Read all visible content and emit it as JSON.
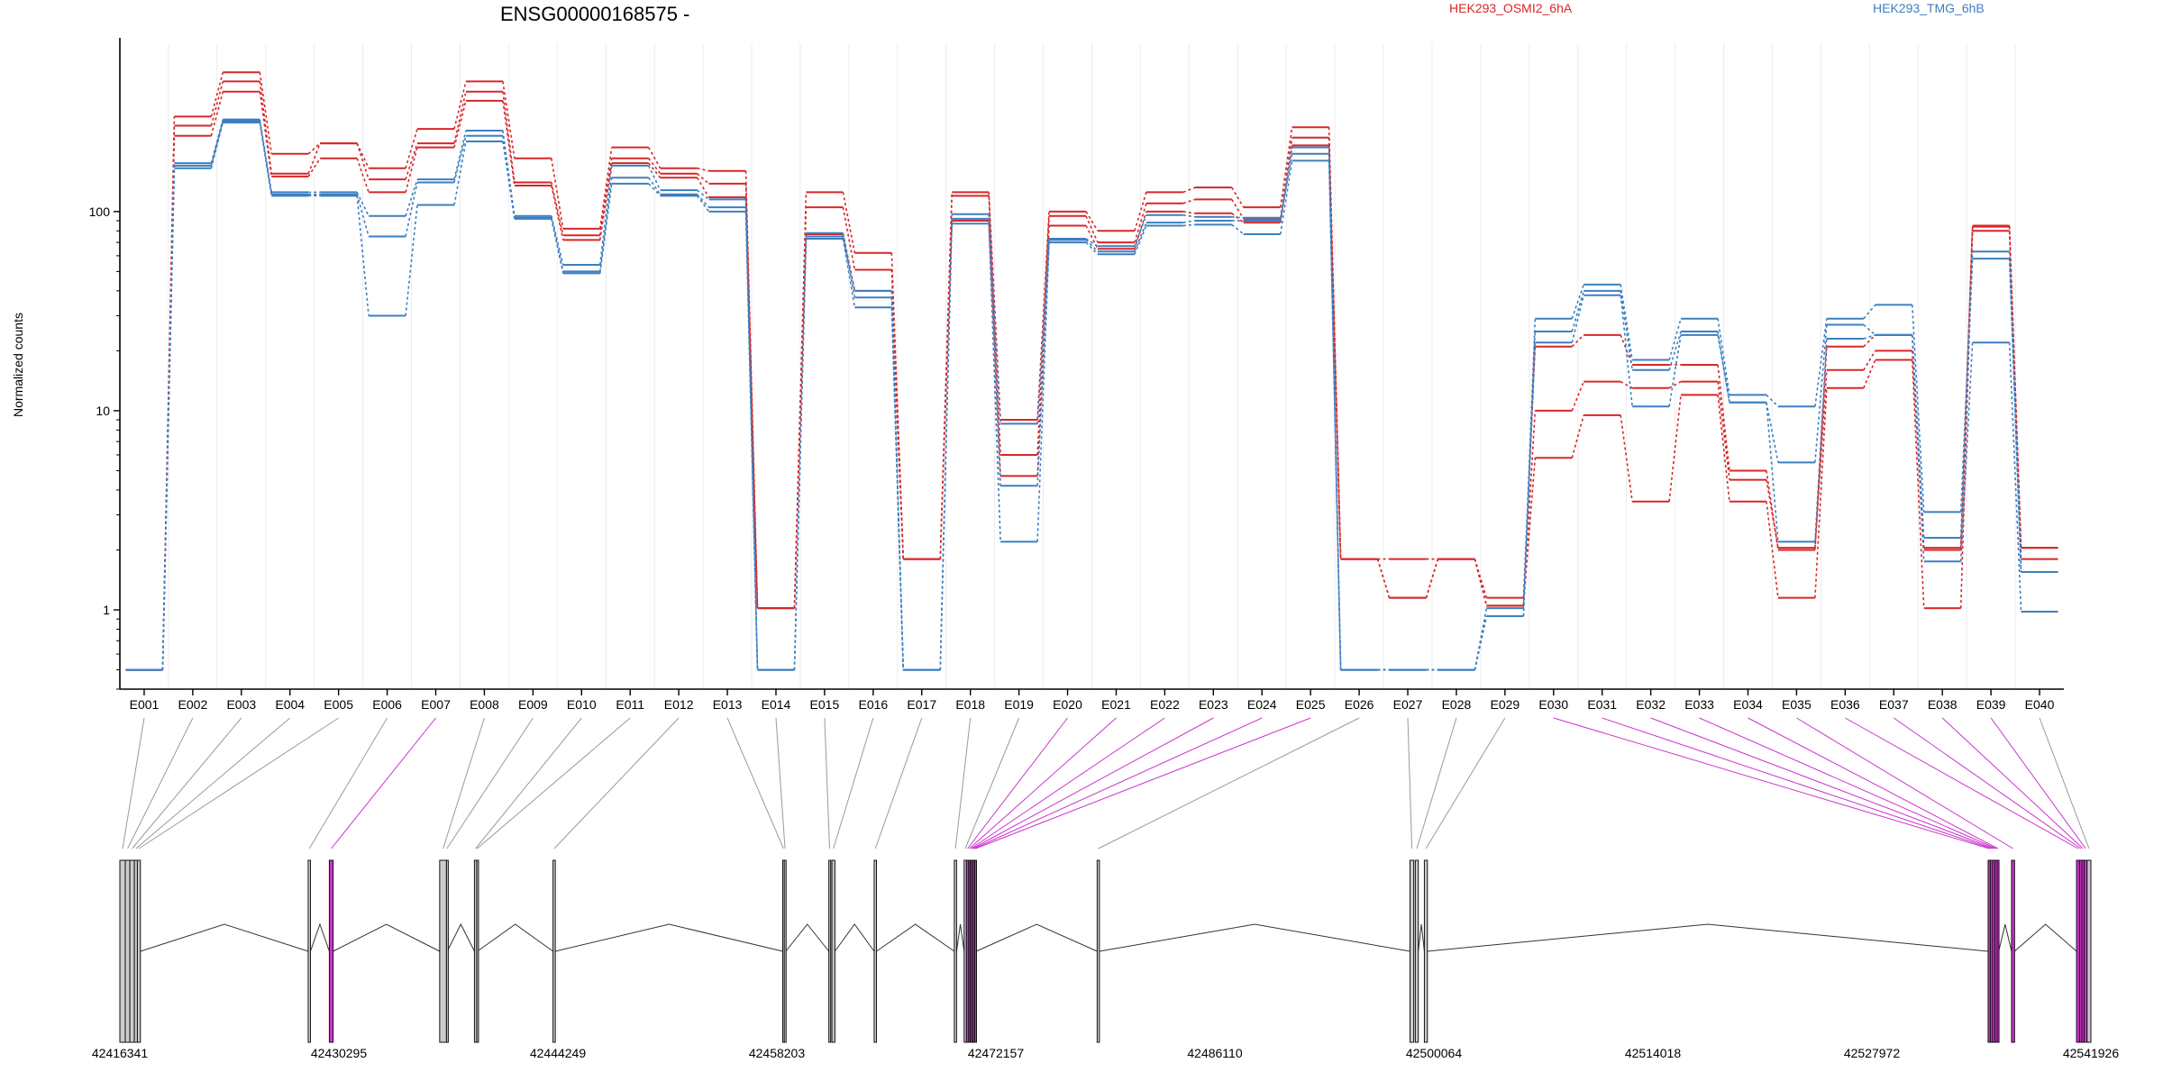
{
  "chart_data": {
    "type": "line",
    "title": "ENSG00000168575 -",
    "ylabel": "Normalized counts",
    "xlabel": "",
    "yscale": "log",
    "ylim": [
      0.4,
      700
    ],
    "yticks": [
      1,
      10,
      100
    ],
    "grid": "vertical",
    "legend": {
      "placement": "top",
      "entries": [
        "HEK293_OSMI2_6hA",
        "HEK293_TMG_6hB"
      ]
    },
    "colors": {
      "HEK293_OSMI2_6hA": "#d62728",
      "HEK293_TMG_6hB": "#3d7fbf",
      "highlight": "#cc33cc",
      "exon": "#cccccc"
    },
    "categories": [
      "E001",
      "E002",
      "E003",
      "E004",
      "E005",
      "E006",
      "E007",
      "E008",
      "E009",
      "E010",
      "E011",
      "E012",
      "E013",
      "E014",
      "E015",
      "E016",
      "E017",
      "E018",
      "E019",
      "E020",
      "E021",
      "E022",
      "E023",
      "E024",
      "E025",
      "E026",
      "E027",
      "E028",
      "E029",
      "E030",
      "E031",
      "E032",
      "E033",
      "E034",
      "E035",
      "E036",
      "E037",
      "E038",
      "E039",
      "E040"
    ],
    "series": [
      {
        "group": "HEK293_OSMI2_6hA",
        "values": [
          0.5,
          300,
          500,
          195,
          220,
          165,
          260,
          450,
          185,
          82,
          210,
          165,
          160,
          1.02,
          125,
          62,
          1.8,
          125,
          9,
          100,
          80,
          125,
          132,
          105,
          265,
          1.8,
          1.8,
          1.8,
          1.15,
          21,
          24,
          17,
          17,
          5,
          2,
          21,
          24,
          2.05,
          85,
          2.05
        ]
      },
      {
        "group": "HEK293_OSMI2_6hA",
        "values": [
          0.5,
          270,
          450,
          155,
          220,
          145,
          220,
          400,
          140,
          76,
          185,
          155,
          138,
          1.02,
          105,
          51,
          1.8,
          120,
          6,
          95,
          70,
          110,
          115,
          92,
          235,
          1.8,
          1.15,
          1.8,
          1.05,
          10,
          14,
          13,
          14,
          4.5,
          2.05,
          16,
          20,
          2,
          84,
          2.05
        ]
      },
      {
        "group": "HEK293_OSMI2_6hA",
        "values": [
          0.5,
          240,
          400,
          150,
          185,
          125,
          210,
          360,
          135,
          72,
          175,
          148,
          118,
          1.02,
          77,
          40,
          1.8,
          90,
          4.7,
          85,
          65,
          100,
          98,
          88,
          215,
          1.8,
          1.15,
          1.8,
          1.05,
          5.8,
          9.5,
          3.5,
          12,
          3.5,
          1.15,
          13,
          18,
          1.02,
          80,
          1.8
        ]
      },
      {
        "group": "HEK293_TMG_6hB",
        "values": [
          0.5,
          175,
          290,
          125,
          125,
          95,
          145,
          255,
          95,
          54,
          170,
          128,
          115,
          0.5,
          78,
          40,
          0.5,
          97,
          8.6,
          73,
          67,
          96,
          94,
          93,
          210,
          0.5,
          0.5,
          0.5,
          1.02,
          29,
          43,
          18,
          29,
          12,
          10.5,
          29,
          34,
          3.1,
          63,
          1.55
        ]
      },
      {
        "group": "HEK293_TMG_6hB",
        "values": [
          0.5,
          170,
          285,
          122,
          122,
          75,
          140,
          240,
          93,
          50,
          148,
          122,
          105,
          0.5,
          75,
          37,
          0.5,
          92,
          4.2,
          72,
          63,
          88,
          90,
          90,
          195,
          0.5,
          0.5,
          0.5,
          0.93,
          25,
          40,
          16,
          25,
          11,
          5.5,
          27,
          24,
          2.3,
          58,
          1.55
        ]
      },
      {
        "group": "HEK293_TMG_6hB",
        "values": [
          0.5,
          165,
          280,
          120,
          120,
          30,
          108,
          225,
          92,
          49,
          138,
          120,
          100,
          0.5,
          73,
          33,
          0.5,
          87,
          2.2,
          70,
          61,
          85,
          86,
          77,
          180,
          0.5,
          0.5,
          0.5,
          0.93,
          22,
          38,
          10.5,
          24,
          11,
          2.2,
          23,
          24,
          1.75,
          22,
          0.98
        ]
      }
    ],
    "exon_model": {
      "coordinate_labels": [
        "42416341",
        "42430295",
        "42444249",
        "42458203",
        "42472157",
        "42486110",
        "42500064",
        "42514018",
        "42527972",
        "42541926"
      ],
      "exons": [
        {
          "bin": "E001",
          "start": 42416341,
          "end": 42416700,
          "highlight": false
        },
        {
          "bin": "E002",
          "start": 42416700,
          "end": 42417000,
          "highlight": false
        },
        {
          "bin": "E003",
          "start": 42417000,
          "end": 42417300,
          "highlight": false
        },
        {
          "bin": "E004",
          "start": 42417300,
          "end": 42417500,
          "highlight": false
        },
        {
          "bin": "E005",
          "start": 42417500,
          "end": 42417700,
          "highlight": false
        },
        {
          "bin": "E006",
          "start": 42428800,
          "end": 42428950,
          "highlight": false
        },
        {
          "bin": "E007",
          "start": 42430200,
          "end": 42430450,
          "highlight": true
        },
        {
          "bin": "E008",
          "start": 42437500,
          "end": 42437950,
          "highlight": false
        },
        {
          "bin": "E009",
          "start": 42437950,
          "end": 42438000,
          "highlight": false
        },
        {
          "bin": "E010",
          "start": 42439800,
          "end": 42439950,
          "highlight": false
        },
        {
          "bin": "E011",
          "start": 42439950,
          "end": 42440000,
          "highlight": false
        },
        {
          "bin": "E012",
          "start": 42445000,
          "end": 42445150,
          "highlight": false
        },
        {
          "bin": "E013",
          "start": 42460200,
          "end": 42460300,
          "highlight": false
        },
        {
          "bin": "E014",
          "start": 42460300,
          "end": 42460400,
          "highlight": false
        },
        {
          "bin": "E015",
          "start": 42463250,
          "end": 42463350,
          "highlight": false
        },
        {
          "bin": "E016",
          "start": 42463450,
          "end": 42463650,
          "highlight": false
        },
        {
          "bin": "E017",
          "start": 42466250,
          "end": 42466400,
          "highlight": false
        },
        {
          "bin": "E018",
          "start": 42471550,
          "end": 42471700,
          "highlight": false
        },
        {
          "bin": "E019",
          "start": 42472200,
          "end": 42472350,
          "highlight": false
        },
        {
          "bin": "E020",
          "start": 42472350,
          "end": 42472500,
          "highlight": true
        },
        {
          "bin": "E021",
          "start": 42472500,
          "end": 42472600,
          "highlight": true
        },
        {
          "bin": "E022",
          "start": 42472600,
          "end": 42472700,
          "highlight": true
        },
        {
          "bin": "E023",
          "start": 42472700,
          "end": 42472800,
          "highlight": true
        },
        {
          "bin": "E024",
          "start": 42472800,
          "end": 42472900,
          "highlight": true
        },
        {
          "bin": "E025",
          "start": 42472900,
          "end": 42473000,
          "highlight": true
        },
        {
          "bin": "E026",
          "start": 42481000,
          "end": 42481150,
          "highlight": false
        },
        {
          "bin": "E027",
          "start": 42501700,
          "end": 42501950,
          "highlight": false
        },
        {
          "bin": "E028",
          "start": 42502050,
          "end": 42502250,
          "highlight": false
        },
        {
          "bin": "E029",
          "start": 42502650,
          "end": 42502850,
          "highlight": false
        },
        {
          "bin": "E030",
          "start": 42539950,
          "end": 42540100,
          "highlight": true
        },
        {
          "bin": "E031",
          "start": 42540100,
          "end": 42540250,
          "highlight": true
        },
        {
          "bin": "E032",
          "start": 42540250,
          "end": 42540400,
          "highlight": true
        },
        {
          "bin": "E033",
          "start": 42540400,
          "end": 42540550,
          "highlight": true
        },
        {
          "bin": "E034",
          "start": 42540550,
          "end": 42540650,
          "highlight": true
        },
        {
          "bin": "E035",
          "start": 42541500,
          "end": 42541700,
          "highlight": true
        },
        {
          "bin": "E036",
          "start": 42545800,
          "end": 42546000,
          "highlight": true
        },
        {
          "bin": "E037",
          "start": 42546000,
          "end": 42546150,
          "highlight": true
        },
        {
          "bin": "E038",
          "start": 42546150,
          "end": 42546300,
          "highlight": true
        },
        {
          "bin": "E039",
          "start": 42546300,
          "end": 42546500,
          "highlight": true
        },
        {
          "bin": "E040",
          "start": 42546500,
          "end": 42546750,
          "highlight": false
        }
      ]
    }
  }
}
